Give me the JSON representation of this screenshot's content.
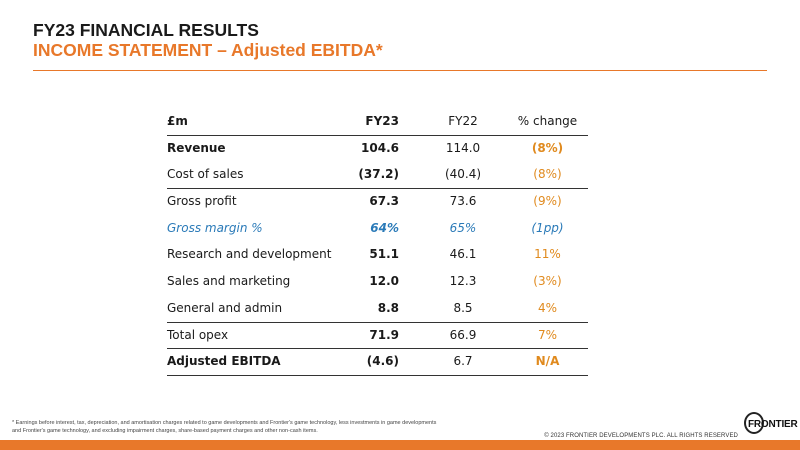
{
  "header": {
    "title": "FY23 FINANCIAL RESULTS",
    "subtitle": "INCOME STATEMENT – Adjusted EBITDA*"
  },
  "table": {
    "columns": [
      "£m",
      "FY23",
      "FY22",
      "% change"
    ],
    "rows": [
      [
        "Revenue",
        "104.6",
        "114.0",
        "(8%)"
      ],
      [
        "Cost of sales",
        "(37.2)",
        "(40.4)",
        "(8%)"
      ],
      [
        "Gross profit",
        "67.3",
        "73.6",
        "(9%)"
      ],
      [
        "Gross margin %",
        "64%",
        "65%",
        "(1pp)"
      ],
      [
        "Research and development",
        "51.1",
        "46.1",
        "11%"
      ],
      [
        "Sales and marketing",
        "12.0",
        "12.3",
        "(3%)"
      ],
      [
        "General and admin",
        "8.8",
        "8.5",
        "4%"
      ],
      [
        "Total opex",
        "71.9",
        "66.9",
        "7%"
      ],
      [
        "Adjusted EBITDA",
        "(4.6)",
        "6.7",
        "N/A"
      ]
    ]
  },
  "footnote": {
    "line1": "* Earnings before interest, tax, depreciation, and amortisation charges related to game developments and Frontier's game technology, less investments in game developments",
    "line2": "and Frontier's game technology, and excluding impairment charges, share-based payment charges and other non-cash items."
  },
  "copyright": "© 2023 FRONTIER DEVELOPMENTS PLC. ALL RIGHTS RESERVED",
  "logo": {
    "text": "FRONTIER"
  },
  "colors": {
    "accent": "#e8782a",
    "change": "#e08a1e",
    "margin_blue": "#2a7ab8"
  }
}
